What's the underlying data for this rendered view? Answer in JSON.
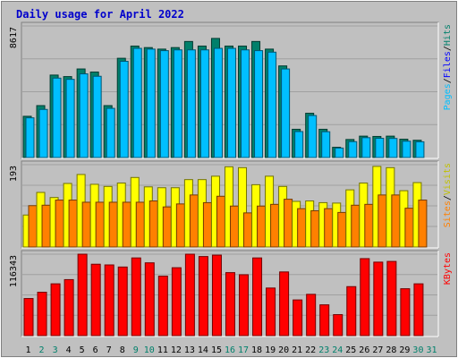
{
  "chart_data": {
    "type": "bar",
    "title": "Daily usage for April 2022",
    "categories": [
      "1",
      "2",
      "3",
      "4",
      "5",
      "6",
      "7",
      "8",
      "9",
      "10",
      "11",
      "12",
      "13",
      "14",
      "15",
      "16",
      "17",
      "18",
      "19",
      "20",
      "21",
      "22",
      "23",
      "24",
      "25",
      "26",
      "27",
      "28",
      "29",
      "30",
      "31"
    ],
    "weekend_days": [
      "2",
      "3",
      "9",
      "10",
      "16",
      "17",
      "23",
      "24",
      "30",
      "31"
    ],
    "panels": [
      {
        "name": "top",
        "ymax_label": "8617",
        "ymax": 8617,
        "axis_labels": [
          "Pages",
          "Files",
          "Hits"
        ],
        "series": [
          {
            "name": "Hits",
            "color": "#00806b",
            "values": [
              2700,
              3400,
              5400,
              5300,
              5800,
              5600,
              3400,
              6500,
              7300,
              7200,
              7100,
              7200,
              7600,
              7300,
              7800,
              7300,
              7300,
              7600,
              7100,
              6000,
              1850,
              2900,
              1850,
              670,
              1180,
              1400,
              1380,
              1400,
              1200,
              1130,
              0
            ]
          },
          {
            "name": "Files",
            "color": "#00bfff",
            "values": [
              2600,
              3150,
              5200,
              5120,
              5480,
              5320,
              3220,
              6300,
              7150,
              7100,
              7000,
              7050,
              7050,
              7050,
              7150,
              7150,
              7050,
              7000,
              6900,
              5800,
              1700,
              2750,
              1690,
              620,
              1040,
              1300,
              1260,
              1250,
              1070,
              1030,
              0
            ]
          },
          {
            "name": "Pages",
            "color": "#0040ff",
            "values": [
              0,
              0,
              0,
              0,
              0,
              0,
              0,
              0,
              0,
              0,
              0,
              0,
              0,
              0,
              0,
              0,
              0,
              0,
              0,
              0,
              0,
              0,
              0,
              0,
              0,
              0,
              0,
              0,
              0,
              0,
              0
            ]
          }
        ]
      },
      {
        "name": "middle",
        "ymax_label": "193",
        "ymax": 193,
        "axis_labels": [
          "Sites",
          "Visits"
        ],
        "series": [
          {
            "name": "Visits",
            "color": "#ffff00",
            "values": [
              75,
              128,
              116,
              149,
              170,
              147,
              142,
              150,
              163,
              141,
              139,
              139,
              158,
              158,
              166,
              188,
              186,
              146,
              166,
              142,
              107,
              108,
              104,
              103,
              134,
              150,
              189,
              186,
              132,
              151,
              0
            ]
          },
          {
            "name": "Sites",
            "color": "#ff8000",
            "values": [
              97,
              98,
              110,
              110,
              105,
              105,
              105,
              105,
              105,
              108,
              94,
              101,
              122,
              104,
              119,
              96,
              80,
              96,
              100,
              112,
              90,
              85,
              90,
              81,
              98,
              100,
              122,
              122,
              91,
              110,
              0
            ]
          }
        ]
      },
      {
        "name": "bottom",
        "ymax_label": "116343",
        "ymax": 116343,
        "axis_labels": [
          "KBytes"
        ],
        "series": [
          {
            "name": "KBytes",
            "color": "#ff0000",
            "values": [
              53000,
              62000,
              74000,
              80000,
              116343,
              102000,
              101000,
              98000,
              111000,
              104000,
              85000,
              97000,
              116343,
              113000,
              115000,
              90000,
              87000,
              111000,
              68000,
              91000,
              51000,
              59000,
              44000,
              30000,
              70000,
              110000,
              105000,
              106000,
              67000,
              74000,
              0
            ]
          }
        ]
      }
    ]
  }
}
